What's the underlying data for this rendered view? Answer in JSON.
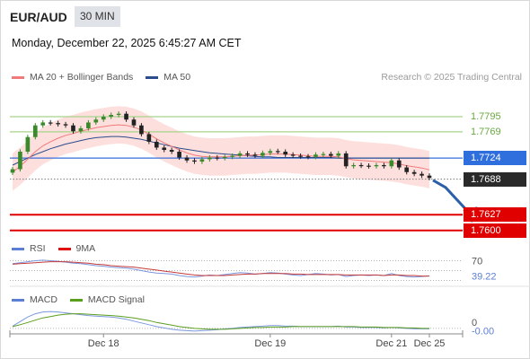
{
  "header": {
    "symbol": "EUR/AUD",
    "timeframe": "30 MIN",
    "datetime": "Monday, December 22, 2025 6:45:27 AM CET"
  },
  "chart_data": [
    {
      "type": "candlestick",
      "title": "",
      "legend": [
        "MA 20 + Bollinger Bands",
        "MA 50"
      ],
      "annotation": "Research © 2025 Trading Central",
      "ylim": [
        1.7592,
        1.7838
      ],
      "x_ticks": [
        "Dec 18",
        "Dec 19",
        "Dec 21",
        "Dec 25"
      ],
      "x_tick_positions": [
        12,
        34,
        50,
        55
      ],
      "n_bars": 56,
      "levels": [
        {
          "label": "1.7795",
          "value": 1.7795,
          "color": "#a8d38a",
          "tag_bg": "",
          "tag_fg": "#6aa843"
        },
        {
          "label": "1.7769",
          "value": 1.7769,
          "color": "#a8d38a",
          "tag_bg": "",
          "tag_fg": "#6aa843"
        },
        {
          "label": "1.7724",
          "value": 1.7724,
          "color": "#3a6fd8",
          "tag_bg": "#2f6fdd",
          "tag_fg": "#ffffff"
        },
        {
          "label": "1.7688",
          "value": 1.7688,
          "color": "#888888",
          "tag_bg": "#2a2a2a",
          "tag_fg": "#ffffff"
        },
        {
          "label": "1.7627",
          "value": 1.7627,
          "color": "#e00000",
          "tag_bg": "#e00000",
          "tag_fg": "#ffffff"
        },
        {
          "label": "1.7600",
          "value": 1.76,
          "color": "#e00000",
          "tag_bg": "#e00000",
          "tag_fg": "#ffffff"
        }
      ],
      "close": [
        1.7705,
        1.7735,
        1.776,
        1.778,
        1.7785,
        1.7784,
        1.7782,
        1.778,
        1.777,
        1.7775,
        1.7785,
        1.779,
        1.7795,
        1.7798,
        1.78,
        1.779,
        1.778,
        1.7765,
        1.7752,
        1.7742,
        1.7738,
        1.7735,
        1.7725,
        1.772,
        1.7718,
        1.7722,
        1.7725,
        1.7724,
        1.7726,
        1.7728,
        1.7732,
        1.773,
        1.7728,
        1.7733,
        1.7736,
        1.7735,
        1.773,
        1.7728,
        1.7727,
        1.7726,
        1.773,
        1.7731,
        1.7728,
        1.7732,
        1.771,
        1.7712,
        1.7711,
        1.771,
        1.7712,
        1.771,
        1.772,
        1.7708,
        1.77,
        1.7697,
        1.7694,
        1.769
      ],
      "ma20": [
        1.77,
        1.771,
        1.7722,
        1.7735,
        1.7745,
        1.7752,
        1.7758,
        1.7763,
        1.7766,
        1.777,
        1.7773,
        1.7776,
        1.7778,
        1.778,
        1.7781,
        1.778,
        1.7777,
        1.7772,
        1.7765,
        1.7757,
        1.775,
        1.7744,
        1.7738,
        1.7733,
        1.7729,
        1.7727,
        1.7726,
        1.7726,
        1.7726,
        1.7727,
        1.7728,
        1.7729,
        1.7729,
        1.773,
        1.7731,
        1.7731,
        1.7731,
        1.773,
        1.7729,
        1.7728,
        1.7727,
        1.7727,
        1.7727,
        1.7726,
        1.7723,
        1.7721,
        1.772,
        1.7719,
        1.7718,
        1.7717,
        1.7716,
        1.7714,
        1.7711,
        1.7709,
        1.7707,
        1.7704
      ],
      "ma50": [
        1.7712,
        1.7718,
        1.7724,
        1.773,
        1.7735,
        1.774,
        1.7744,
        1.7748,
        1.7751,
        1.7754,
        1.7757,
        1.7759,
        1.776,
        1.7761,
        1.7761,
        1.776,
        1.7758,
        1.7756,
        1.7753,
        1.775,
        1.7747,
        1.7744,
        1.7741,
        1.7739,
        1.7737,
        1.7735,
        1.7733,
        1.7732,
        1.7731,
        1.773,
        1.7729,
        1.7728,
        1.7727,
        1.7726,
        1.7726,
        1.7725,
        1.7725,
        1.7725,
        1.7725,
        1.7725,
        1.7725,
        1.7725,
        1.7725,
        1.7724,
        1.7724,
        1.7724,
        1.7724,
        1.7724,
        1.7724,
        1.7724,
        1.7724,
        1.7724,
        1.7724,
        1.7724,
        1.7724,
        1.7724
      ],
      "band_width": 0.0032,
      "forecast_arrow": {
        "from": [
          55,
          1.7686
        ],
        "to": [
          58,
          1.761
        ],
        "color": "#2b5fa8"
      }
    },
    {
      "type": "line",
      "legend": [
        "RSI",
        "9MA"
      ],
      "ylim": [
        20,
        80
      ],
      "ticks": [
        "70",
        "39.22"
      ],
      "tick_values": [
        70,
        39.22
      ],
      "guides": [
        70,
        50,
        30
      ],
      "rsi": [
        64,
        66,
        68,
        70,
        71,
        70,
        69,
        67,
        65,
        64,
        62,
        60,
        59,
        57,
        56,
        55,
        53,
        50,
        47,
        45,
        44,
        43,
        40,
        38,
        37,
        39,
        41,
        40,
        42,
        44,
        46,
        45,
        43,
        44,
        46,
        45,
        43,
        41,
        40,
        42,
        44,
        43,
        41,
        42,
        38,
        40,
        41,
        40,
        41,
        40,
        44,
        40,
        38,
        37,
        38,
        39.22
      ],
      "ma9": [
        63,
        64,
        65,
        66,
        67,
        68,
        68,
        68,
        67,
        66,
        65,
        63,
        62,
        60,
        59,
        58,
        57,
        55,
        53,
        51,
        49,
        47,
        45,
        43,
        41,
        40,
        40,
        40,
        40,
        41,
        42,
        43,
        43,
        44,
        44,
        44,
        44,
        43,
        43,
        42,
        42,
        42,
        42,
        42,
        41,
        41,
        41,
        41,
        41,
        40,
        41,
        41,
        40,
        40,
        39,
        39
      ]
    },
    {
      "type": "line",
      "legend": [
        "MACD",
        "MACD Signal"
      ],
      "ylim": [
        -0.0012,
        0.0045
      ],
      "ticks": [
        "0",
        "-0.00"
      ],
      "tick_values": [
        0,
        -0.00015
      ],
      "macd": [
        0.0005,
        0.0015,
        0.0025,
        0.0032,
        0.0036,
        0.0037,
        0.0036,
        0.0034,
        0.0032,
        0.003,
        0.0028,
        0.0027,
        0.0026,
        0.0025,
        0.0023,
        0.002,
        0.0016,
        0.0012,
        0.0008,
        0.0004,
        0.0001,
        -0.0002,
        -0.0004,
        -0.0005,
        -0.0006,
        -0.0005,
        -0.0004,
        -0.0003,
        -0.0001,
        0.0,
        0.0002,
        0.0003,
        0.0004,
        0.0005,
        0.0006,
        0.0006,
        0.0005,
        0.0005,
        0.0004,
        0.0004,
        0.0004,
        0.0004,
        0.0004,
        0.0005,
        0.0003,
        0.0003,
        0.0002,
        0.0002,
        0.0002,
        0.0001,
        0.0002,
        0.0001,
        0.0,
        -0.0001,
        -0.0001,
        -0.0001
      ],
      "signal": [
        0.0004,
        0.0008,
        0.0013,
        0.0018,
        0.0023,
        0.0026,
        0.0029,
        0.0031,
        0.0032,
        0.0032,
        0.0031,
        0.003,
        0.0029,
        0.0028,
        0.0027,
        0.0025,
        0.0023,
        0.002,
        0.0017,
        0.0013,
        0.001,
        0.0007,
        0.0004,
        0.0002,
        0.0,
        -0.0001,
        -0.0002,
        -0.0002,
        -0.0002,
        -0.0001,
        0.0,
        0.0001,
        0.0002,
        0.0002,
        0.0003,
        0.0003,
        0.0003,
        0.0004,
        0.0004,
        0.0004,
        0.0004,
        0.0004,
        0.0004,
        0.0004,
        0.0004,
        0.0004,
        0.0003,
        0.0003,
        0.0003,
        0.0002,
        0.0002,
        0.0002,
        0.0001,
        0.0001,
        0.0,
        0.0
      ]
    }
  ]
}
